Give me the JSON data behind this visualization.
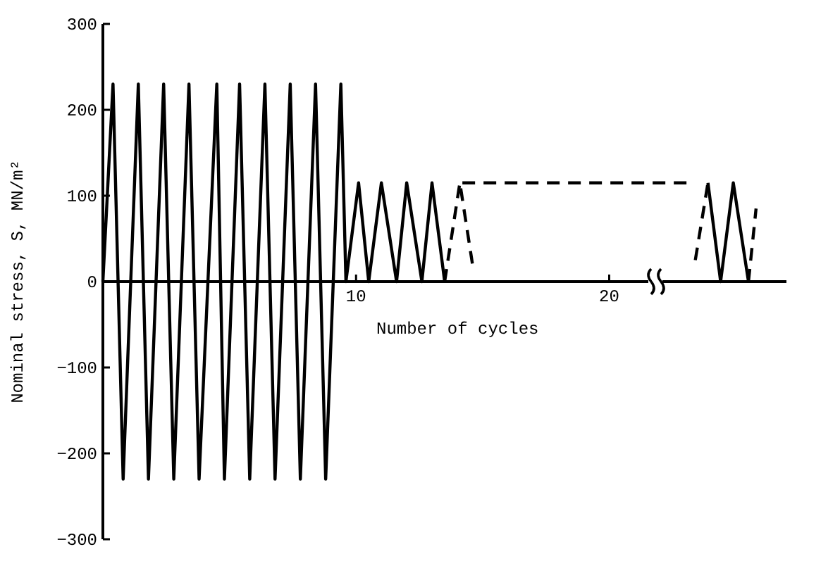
{
  "chart_data": {
    "type": "line",
    "xlabel": "Number of cycles",
    "ylabel": "Nominal stress, S, MN/m²",
    "xlim": [
      0,
      27
    ],
    "ylim": [
      -300,
      300
    ],
    "xticks": [
      10,
      20
    ],
    "yticks": [
      -300,
      -200,
      -100,
      0,
      100,
      200,
      300
    ],
    "grid": false,
    "series": [
      {
        "color": "#000000",
        "line_style": "solid",
        "x": [
          0,
          0.4,
          0.8,
          1.4,
          1.8,
          2.4,
          2.8,
          3.4,
          3.8,
          4.5,
          4.8,
          5.4,
          5.8,
          6.4,
          6.8,
          7.4,
          7.8,
          8.4,
          8.8,
          9.4,
          9.6,
          10.1,
          10.5,
          11.0,
          11.6,
          12.0,
          12.6,
          13.0,
          13.5,
          18,
          23.9,
          24.4,
          24.9,
          25.5
        ],
        "values": [
          0,
          230,
          -230,
          230,
          -230,
          230,
          -230,
          230,
          -230,
          230,
          -230,
          230,
          -230,
          230,
          -230,
          230,
          -230,
          230,
          -230,
          230,
          0,
          115,
          0,
          115,
          0,
          115,
          0,
          115,
          0,
          null,
          115,
          0,
          115,
          0
        ]
      },
      {
        "color": "#000000",
        "line_style": "dashed",
        "x": [
          13.5,
          14.1,
          14.6,
          14.4,
          14.2,
          23.3,
          23.35,
          23.4,
          23.9,
          24.7,
          25.5,
          25.8
        ],
        "values": [
          0,
          115,
          20,
          null,
          115,
          115,
          null,
          25,
          115,
          null,
          0,
          85
        ]
      }
    ]
  }
}
